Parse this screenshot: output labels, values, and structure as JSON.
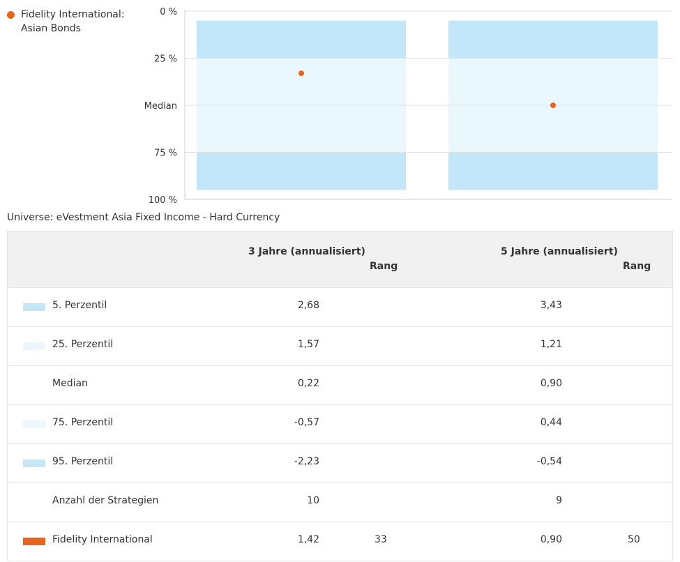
{
  "legend": {
    "marker_color": "#e8651f",
    "label": "Fidelity International:\nAsian Bonds",
    "label_line1": "Fidelity International:",
    "label_line2": "Asian Bonds"
  },
  "universe": "Universe: eVestment Asia Fixed Income - Hard Currency",
  "chart_data": {
    "type": "box",
    "title": "",
    "y_ticks": [
      "0 %",
      "25 %",
      "Median",
      "75 %",
      "100 %"
    ],
    "y_tick_values": [
      0,
      25,
      50,
      75,
      100
    ],
    "ylim": [
      0,
      100
    ],
    "y_inverted": true,
    "categories": [
      "3 Jahre (annualisiert)",
      "5 Jahre (annualisiert)"
    ],
    "bands": [
      {
        "from": 5,
        "to": 25,
        "color": "#c3e7f8"
      },
      {
        "from": 25,
        "to": 75,
        "color": "#eaf7fd"
      },
      {
        "from": 75,
        "to": 95,
        "color": "#c3e7f8"
      }
    ],
    "series": [
      {
        "name": "Fidelity International: Asian Bonds",
        "color": "#e8651f",
        "values": [
          33,
          50
        ]
      }
    ],
    "grid": true
  },
  "table": {
    "headers": {
      "col1": "3 Jahre (annualisiert)",
      "col1_rank": "Rang",
      "col2": "5 Jahre (annualisiert)",
      "col2_rank": "Rang"
    },
    "rows": [
      {
        "label": "5. Perzentil",
        "swatch": "#c3e7f8",
        "v1": "2,68",
        "r1": "",
        "v2": "3,43",
        "r2": ""
      },
      {
        "label": "25. Perzentil",
        "swatch": "#eaf7fd",
        "v1": "1,57",
        "r1": "",
        "v2": "1,21",
        "r2": ""
      },
      {
        "label": "Median",
        "swatch": "",
        "v1": "0,22",
        "r1": "",
        "v2": "0,90",
        "r2": ""
      },
      {
        "label": "75. Perzentil",
        "swatch": "#eaf7fd",
        "v1": "-0,57",
        "r1": "",
        "v2": "0,44",
        "r2": ""
      },
      {
        "label": "95. Perzentil",
        "swatch": "#c3e7f8",
        "v1": "-2,23",
        "r1": "",
        "v2": "-0,54",
        "r2": ""
      },
      {
        "label": "Anzahl der Strategien",
        "swatch": "",
        "v1": "10",
        "r1": "",
        "v2": "9",
        "r2": ""
      },
      {
        "label": "Fidelity International",
        "swatch": "#e8651f",
        "v1": "1,42",
        "r1": "33",
        "v2": "0,90",
        "r2": "50"
      }
    ]
  }
}
